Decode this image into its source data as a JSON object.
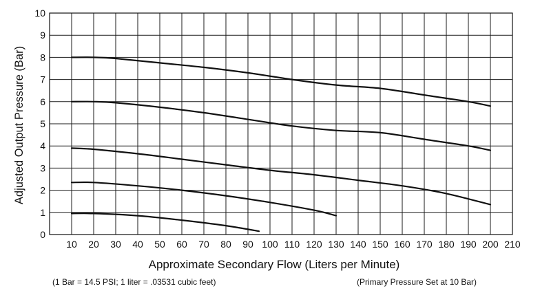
{
  "chart_data": {
    "type": "line",
    "xlabel": "Approximate Secondary Flow (Liters per Minute)",
    "ylabel": "Adjusted Output Pressure (Bar)",
    "xlim": [
      0,
      210
    ],
    "ylim": [
      0,
      10
    ],
    "x_ticks": [
      "10",
      "20",
      "30",
      "40",
      "50",
      "60",
      "70",
      "80",
      "90",
      "100",
      "110",
      "120",
      "130",
      "140",
      "150",
      "160",
      "170",
      "180",
      "190",
      "200",
      "210"
    ],
    "y_ticks": [
      "0",
      "1",
      "2",
      "3",
      "4",
      "5",
      "6",
      "7",
      "8",
      "9",
      "10"
    ],
    "grid": true,
    "notes": {
      "conversion": "(1 Bar = 14.5 PSI; 1 liter = .03531 cubic feet)",
      "primary": "(Primary Pressure Set at 10 Bar)"
    },
    "series": [
      {
        "x": [
          10,
          20,
          30,
          50,
          70,
          90,
          110,
          130,
          150,
          170,
          190,
          200
        ],
        "y": [
          8.0,
          8.0,
          7.95,
          7.75,
          7.55,
          7.3,
          7.0,
          6.75,
          6.6,
          6.3,
          6.0,
          5.8
        ]
      },
      {
        "x": [
          10,
          20,
          30,
          50,
          70,
          90,
          110,
          130,
          150,
          170,
          190,
          200
        ],
        "y": [
          6.0,
          6.0,
          5.95,
          5.75,
          5.5,
          5.2,
          4.9,
          4.7,
          4.6,
          4.3,
          4.0,
          3.8
        ]
      },
      {
        "x": [
          10,
          20,
          40,
          60,
          80,
          100,
          120,
          140,
          160,
          180,
          200
        ],
        "y": [
          3.9,
          3.85,
          3.65,
          3.4,
          3.15,
          2.9,
          2.7,
          2.45,
          2.2,
          1.85,
          1.35
        ]
      },
      {
        "x": [
          10,
          20,
          40,
          60,
          80,
          100,
          120,
          130
        ],
        "y": [
          2.35,
          2.35,
          2.2,
          2.0,
          1.75,
          1.45,
          1.1,
          0.85
        ]
      },
      {
        "x": [
          10,
          20,
          40,
          60,
          80,
          95
        ],
        "y": [
          0.95,
          0.95,
          0.85,
          0.65,
          0.4,
          0.15
        ]
      }
    ]
  }
}
